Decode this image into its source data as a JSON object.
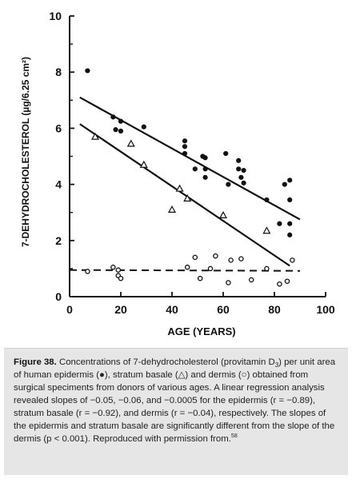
{
  "chart_data": {
    "type": "scatter",
    "xlabel": "AGE (YEARS)",
    "ylabel": "7-DEHYDROCHOLESTEROL (µg/6.25 cm²)",
    "xlim": [
      0,
      100
    ],
    "ylim": [
      0,
      10
    ],
    "x_ticks": [
      "0",
      "20",
      "40",
      "60",
      "80",
      "100"
    ],
    "y_ticks": [
      "0",
      "2",
      "4",
      "6",
      "8",
      "10"
    ],
    "grid": false,
    "series": [
      {
        "marker": "filled-circle",
        "points": [
          {
            "x": 7,
            "y": 8.05
          },
          {
            "x": 17,
            "y": 6.4
          },
          {
            "x": 18,
            "y": 5.95
          },
          {
            "x": 20,
            "y": 5.9
          },
          {
            "x": 20,
            "y": 6.25
          },
          {
            "x": 29,
            "y": 6.05
          },
          {
            "x": 45,
            "y": 5.55
          },
          {
            "x": 45,
            "y": 5.35
          },
          {
            "x": 45,
            "y": 5.1
          },
          {
            "x": 49,
            "y": 4.55
          },
          {
            "x": 52,
            "y": 5.0
          },
          {
            "x": 53,
            "y": 4.95
          },
          {
            "x": 53,
            "y": 4.55
          },
          {
            "x": 53,
            "y": 4.25
          },
          {
            "x": 61,
            "y": 5.1
          },
          {
            "x": 62,
            "y": 4.0
          },
          {
            "x": 66,
            "y": 4.85
          },
          {
            "x": 66,
            "y": 4.55
          },
          {
            "x": 68,
            "y": 4.5
          },
          {
            "x": 67,
            "y": 4.25
          },
          {
            "x": 68,
            "y": 4.05
          },
          {
            "x": 77,
            "y": 3.45
          },
          {
            "x": 82,
            "y": 2.6
          },
          {
            "x": 84,
            "y": 4.0
          },
          {
            "x": 86,
            "y": 4.15
          },
          {
            "x": 86,
            "y": 3.45
          },
          {
            "x": 86,
            "y": 2.6
          },
          {
            "x": 86,
            "y": 2.2
          }
        ],
        "fit_line": {
          "x": [
            4,
            90
          ],
          "y": [
            7.1,
            2.75
          ]
        }
      },
      {
        "marker": "open-triangle",
        "points": [
          {
            "x": 10,
            "y": 5.7
          },
          {
            "x": 24,
            "y": 5.45
          },
          {
            "x": 29,
            "y": 4.7
          },
          {
            "x": 40,
            "y": 3.1
          },
          {
            "x": 43,
            "y": 3.85
          },
          {
            "x": 46,
            "y": 3.5
          },
          {
            "x": 60,
            "y": 2.9
          },
          {
            "x": 77,
            "y": 2.35
          }
        ],
        "fit_line": {
          "x": [
            4,
            86
          ],
          "y": [
            6.15,
            1.1
          ]
        }
      },
      {
        "marker": "open-circle",
        "points": [
          {
            "x": 7,
            "y": 0.9
          },
          {
            "x": 17,
            "y": 1.05
          },
          {
            "x": 19,
            "y": 0.95
          },
          {
            "x": 19,
            "y": 0.75
          },
          {
            "x": 20,
            "y": 0.65
          },
          {
            "x": 46,
            "y": 1.05
          },
          {
            "x": 49,
            "y": 1.4
          },
          {
            "x": 51,
            "y": 0.65
          },
          {
            "x": 55,
            "y": 1.0
          },
          {
            "x": 57,
            "y": 1.45
          },
          {
            "x": 62,
            "y": 0.5
          },
          {
            "x": 63,
            "y": 1.3
          },
          {
            "x": 67,
            "y": 1.35
          },
          {
            "x": 71,
            "y": 0.6
          },
          {
            "x": 77,
            "y": 1.0
          },
          {
            "x": 82,
            "y": 0.45
          },
          {
            "x": 85,
            "y": 0.55
          },
          {
            "x": 87,
            "y": 1.3
          }
        ],
        "fit_line": {
          "x": [
            0,
            90
          ],
          "y": [
            0.95,
            0.92
          ]
        },
        "fit_line_style": "dashed"
      }
    ]
  },
  "caption": {
    "label": "Figure 38.",
    "parts": [
      {
        "t": " Concentrations of 7-dehydrocholesterol (provitamin D"
      },
      {
        "sub": "3"
      },
      {
        "t": ") per unit area of human epidermis (●), stratum basale (△) and dermis (○) obtained from surgical speciments from donors of various ages. A linear regression analysis revealed slopes of −0.05, −0.06, and −0.0005 for the epidermis (r = −0.89), stratum basale (r = −0.92), and dermis (r = −0.04), respectively. The slopes of the epidermis and stratum basale are significantly different from the slope of the dermis (p < 0.001). Reproduced with permission from."
      },
      {
        "sup": "58"
      }
    ]
  }
}
